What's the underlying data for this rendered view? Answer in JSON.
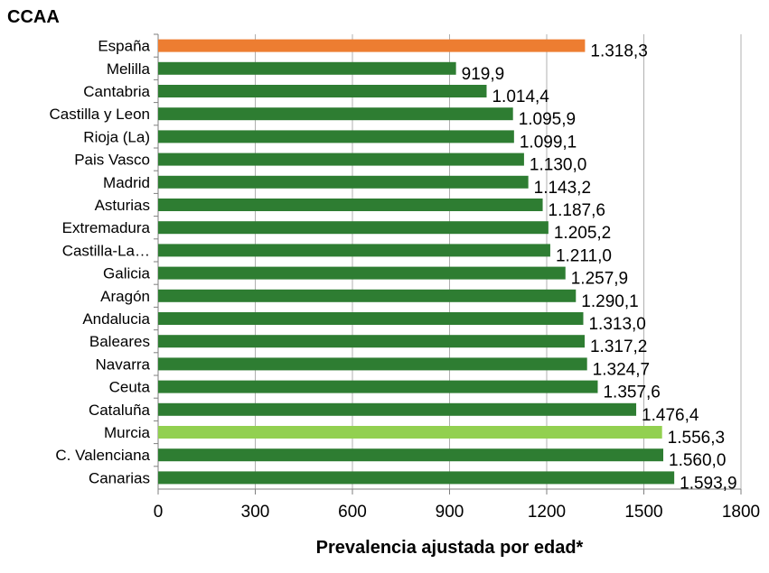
{
  "chart_data": {
    "type": "bar",
    "orientation": "horizontal",
    "title": "CCAA",
    "xlabel": "Prevalencia ajustada por edad*",
    "ylabel": "",
    "xlim": [
      0,
      1800
    ],
    "xticks": [
      "0",
      "300",
      "600",
      "900",
      "1200",
      "1500",
      "1800"
    ],
    "grid": true,
    "categories": [
      "España",
      "Melilla",
      "Cantabria",
      "Castilla y Leon",
      "Rioja (La)",
      "Pais Vasco",
      "Madrid",
      "Asturias",
      "Extremadura",
      "Castilla-La…",
      "Galicia",
      "Aragón",
      "Andalucia",
      "Baleares",
      "Navarra",
      "Ceuta",
      "Cataluña",
      "Murcia",
      "C. Valenciana",
      "Canarias"
    ],
    "values": [
      1318.3,
      919.9,
      1014.4,
      1095.9,
      1099.1,
      1130.0,
      1143.2,
      1187.6,
      1205.2,
      1211.0,
      1257.9,
      1290.1,
      1313.0,
      1317.2,
      1324.7,
      1357.6,
      1476.4,
      1556.3,
      1560.0,
      1593.9
    ],
    "value_labels": [
      "1.318,3",
      "919,9",
      "1.014,4",
      "1.095,9",
      "1.099,1",
      "1.130,0",
      "1.143,2",
      "1.187,6",
      "1.205,2",
      "1.211,0",
      "1.257,9",
      "1.290,1",
      "1.313,0",
      "1.317,2",
      "1.324,7",
      "1.357,6",
      "1.476,4",
      "1.556,3",
      "1.560,0",
      "1.593,9"
    ],
    "colors": [
      "#ed7d31",
      "#2e7d32",
      "#2e7d32",
      "#2e7d32",
      "#2e7d32",
      "#2e7d32",
      "#2e7d32",
      "#2e7d32",
      "#2e7d32",
      "#2e7d32",
      "#2e7d32",
      "#2e7d32",
      "#2e7d32",
      "#2e7d32",
      "#2e7d32",
      "#2e7d32",
      "#2e7d32",
      "#92d050",
      "#2e7d32",
      "#2e7d32"
    ]
  }
}
